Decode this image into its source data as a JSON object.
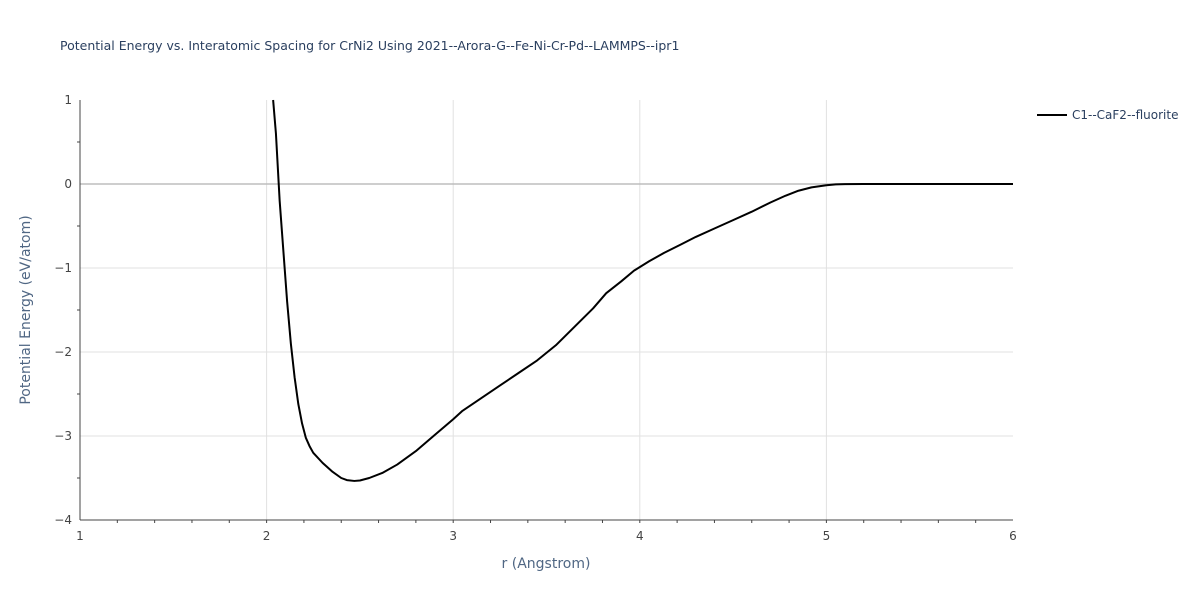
{
  "chart_data": {
    "type": "line",
    "title": "Potential Energy vs. Interatomic Spacing for CrNi2 Using 2021--Arora-G--Fe-Ni-Cr-Pd--LAMMPS--ipr1",
    "xlabel": "r (Angstrom)",
    "ylabel": "Potential Energy (eV/atom)",
    "xlim": [
      1,
      6
    ],
    "ylim": [
      -4,
      1
    ],
    "x_ticks": [
      "1",
      "2",
      "3",
      "4",
      "5",
      "6"
    ],
    "y_ticks": [
      "1",
      "0",
      "−1",
      "−2",
      "−3",
      "−4"
    ],
    "grid": true,
    "legend_position": "top-right",
    "series": [
      {
        "name": "C1--CaF2--fluorite",
        "color": "#000000",
        "x": [
          2.035,
          2.05,
          2.07,
          2.09,
          2.11,
          2.13,
          2.15,
          2.17,
          2.19,
          2.21,
          2.23,
          2.25,
          2.3,
          2.35,
          2.4,
          2.43,
          2.47,
          2.5,
          2.55,
          2.62,
          2.7,
          2.8,
          2.9,
          3.0,
          3.05,
          3.15,
          3.25,
          3.35,
          3.45,
          3.55,
          3.65,
          3.75,
          3.82,
          3.9,
          3.97,
          4.05,
          4.13,
          4.22,
          4.3,
          4.4,
          4.5,
          4.6,
          4.7,
          4.78,
          4.85,
          4.92,
          5.0,
          5.05,
          5.1,
          5.2,
          5.5,
          6.0
        ],
        "y": [
          1.0,
          0.6,
          -0.2,
          -0.8,
          -1.4,
          -1.9,
          -2.3,
          -2.62,
          -2.85,
          -3.02,
          -3.12,
          -3.2,
          -3.32,
          -3.42,
          -3.5,
          -3.525,
          -3.535,
          -3.53,
          -3.5,
          -3.44,
          -3.34,
          -3.18,
          -2.99,
          -2.8,
          -2.7,
          -2.55,
          -2.4,
          -2.25,
          -2.1,
          -1.92,
          -1.7,
          -1.48,
          -1.3,
          -1.16,
          -1.03,
          -0.92,
          -0.82,
          -0.72,
          -0.63,
          -0.53,
          -0.43,
          -0.33,
          -0.22,
          -0.14,
          -0.08,
          -0.04,
          -0.015,
          -0.005,
          -0.002,
          0.0,
          0.0,
          0.0
        ]
      }
    ]
  }
}
